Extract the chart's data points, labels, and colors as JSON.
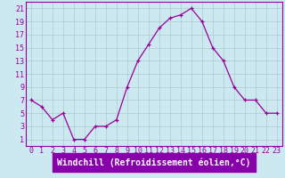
{
  "x": [
    0,
    1,
    2,
    3,
    4,
    5,
    6,
    7,
    8,
    9,
    10,
    11,
    12,
    13,
    14,
    15,
    16,
    17,
    18,
    19,
    20,
    21,
    22,
    23
  ],
  "y": [
    7,
    6,
    4,
    5,
    1,
    1,
    3,
    3,
    4,
    9,
    13,
    15.5,
    18,
    19.5,
    20,
    21,
    19,
    15,
    13,
    9,
    7,
    7,
    5,
    5
  ],
  "line_color": "#990099",
  "marker": "+",
  "marker_size": 3,
  "bg_color": "#cce8f0",
  "grid_color": "#aacccc",
  "xlabel": "Windchill (Refroidissement éolien,°C)",
  "xlabel_bg": "#8800aa",
  "ylabel_ticks": [
    1,
    3,
    5,
    7,
    9,
    11,
    13,
    15,
    17,
    19,
    21
  ],
  "xlim": [
    -0.5,
    23.5
  ],
  "ylim": [
    0,
    22
  ],
  "xticks": [
    0,
    1,
    2,
    3,
    4,
    5,
    6,
    7,
    8,
    9,
    10,
    11,
    12,
    13,
    14,
    15,
    16,
    17,
    18,
    19,
    20,
    21,
    22,
    23
  ],
  "tick_color": "#990099",
  "axis_label_fontsize": 6.5,
  "tick_fontsize": 6.0,
  "xlabel_fontsize": 7.0
}
